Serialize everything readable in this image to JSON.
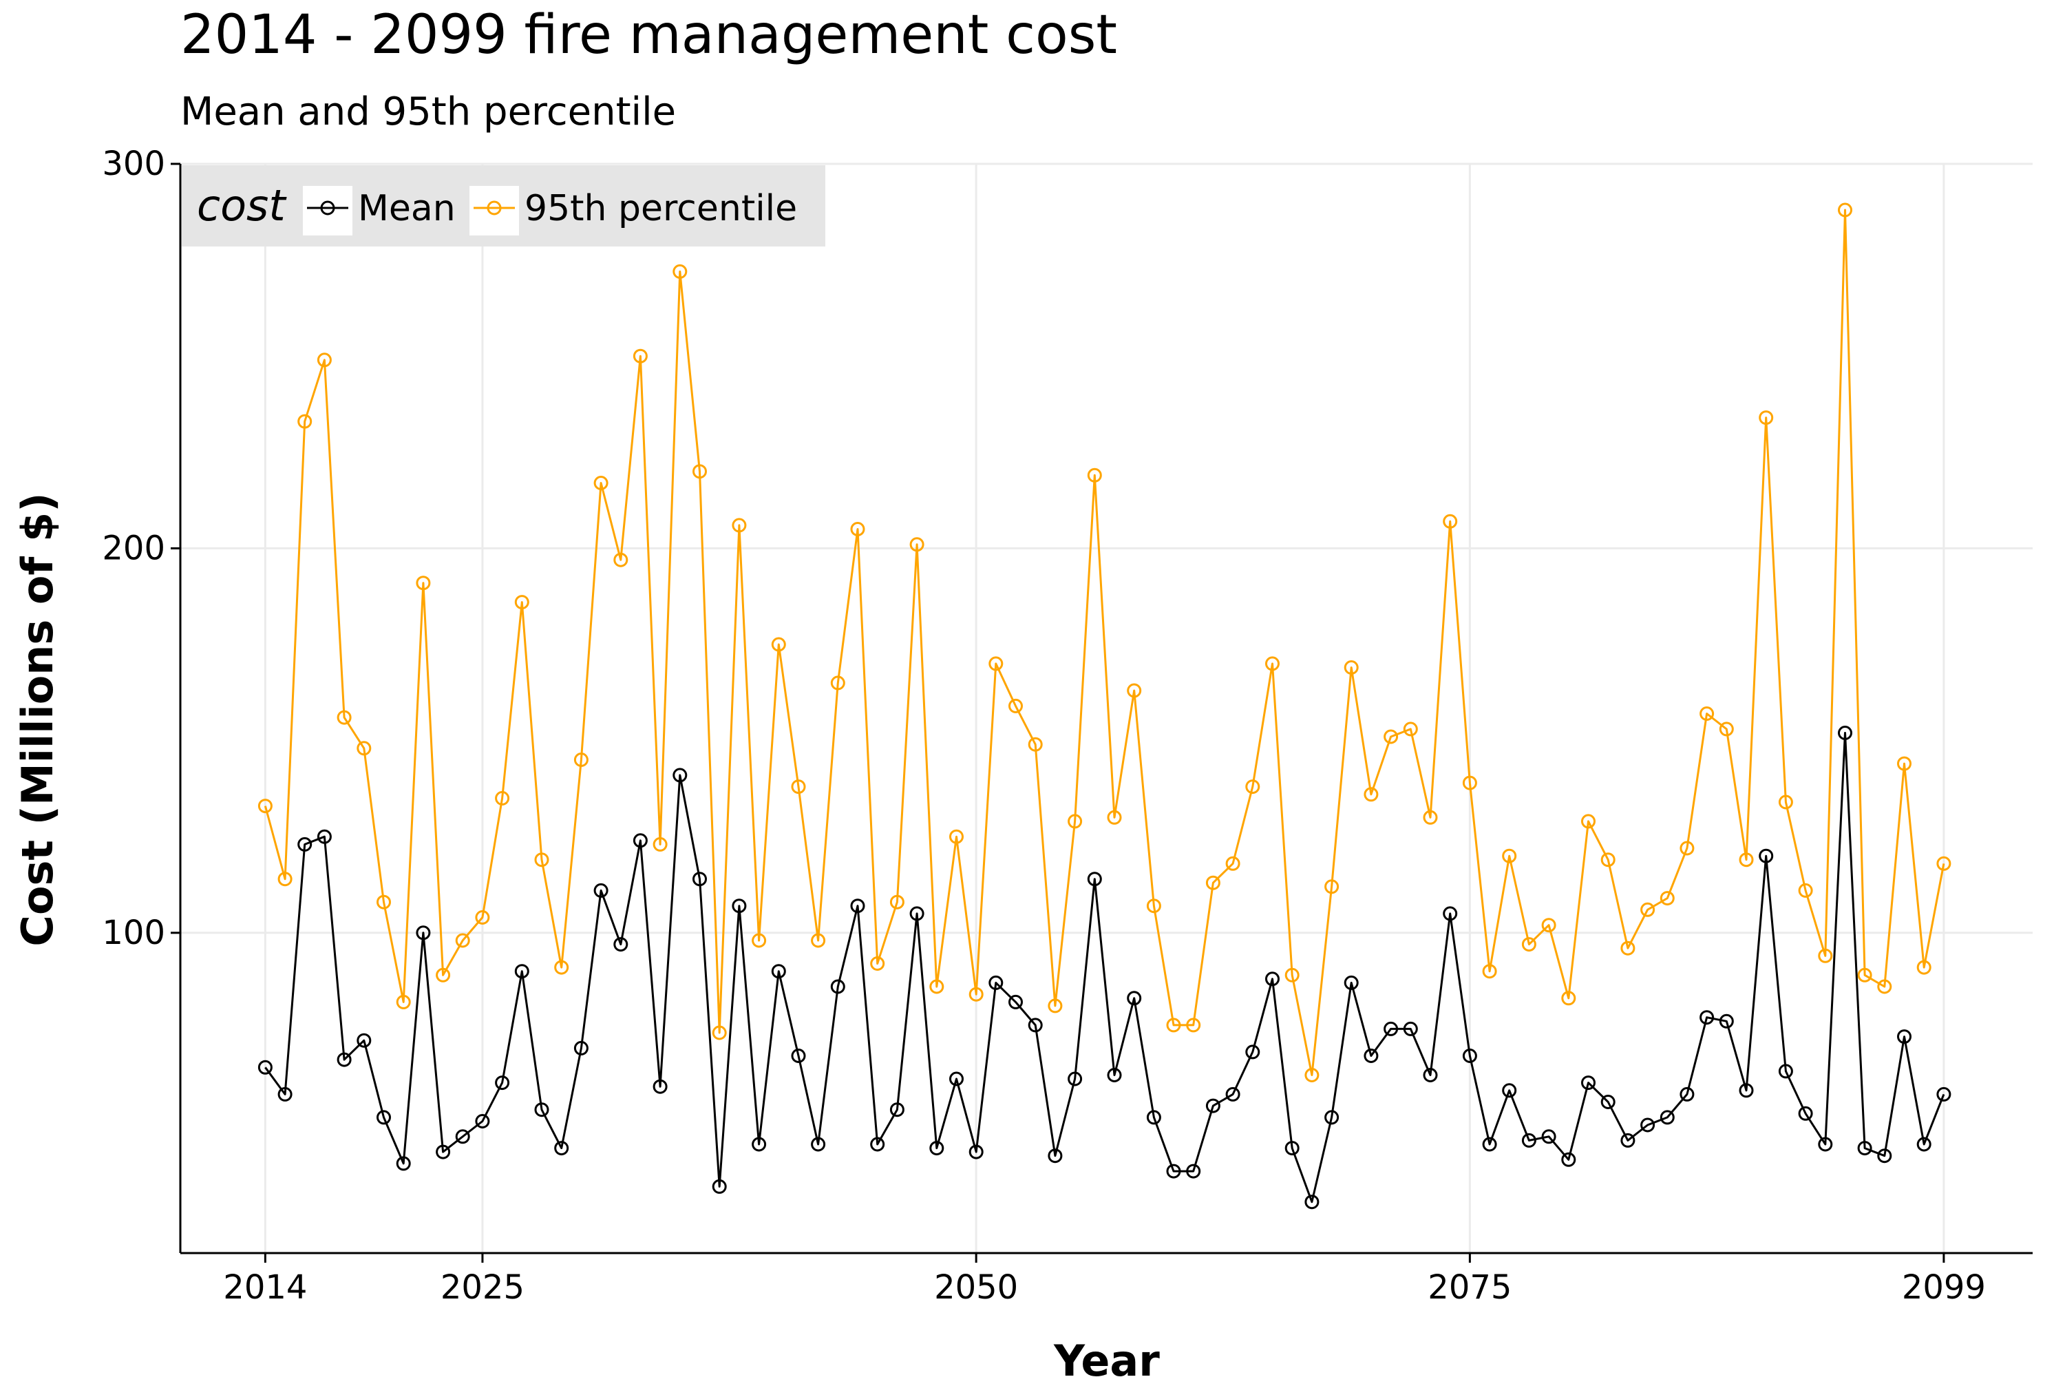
{
  "chart_data": {
    "type": "line",
    "title": "2014 - 2099 fire management cost",
    "subtitle": "Mean and 95th percentile",
    "xlabel": "Year",
    "ylabel": "Cost (Millions of $)",
    "xlim": [
      2009.7,
      2103.5
    ],
    "ylim": [
      16.7,
      300
    ],
    "x_ticks": [
      2014,
      2025,
      2050,
      2075,
      2099
    ],
    "y_ticks": [
      100,
      200,
      300
    ],
    "grid": true,
    "legend": {
      "title": "cost",
      "position": "top-left",
      "entries": [
        "Mean",
        "95th percentile"
      ]
    },
    "colors": {
      "Mean": "#000000",
      "95th percentile": "#ffa500",
      "grid": "#ebebeb",
      "legend_bg": "#e5e5e5"
    },
    "x": [
      2014,
      2015,
      2016,
      2017,
      2018,
      2019,
      2020,
      2021,
      2022,
      2023,
      2024,
      2025,
      2026,
      2027,
      2028,
      2029,
      2030,
      2031,
      2032,
      2033,
      2034,
      2035,
      2036,
      2037,
      2038,
      2039,
      2040,
      2041,
      2042,
      2043,
      2044,
      2045,
      2046,
      2047,
      2048,
      2049,
      2050,
      2051,
      2052,
      2053,
      2054,
      2055,
      2056,
      2057,
      2058,
      2059,
      2060,
      2061,
      2062,
      2063,
      2064,
      2065,
      2066,
      2067,
      2068,
      2069,
      2070,
      2071,
      2072,
      2073,
      2074,
      2075,
      2076,
      2077,
      2078,
      2079,
      2080,
      2081,
      2082,
      2083,
      2084,
      2085,
      2086,
      2087,
      2088,
      2089,
      2090,
      2091,
      2092,
      2093,
      2094,
      2095,
      2096,
      2097,
      2098,
      2099
    ],
    "series": [
      {
        "name": "Mean",
        "values": [
          65,
          58,
          123,
          125,
          67,
          72,
          52,
          40,
          100,
          43,
          47,
          51,
          61,
          90,
          54,
          44,
          70,
          111,
          97,
          124,
          60,
          141,
          114,
          34,
          107,
          45,
          90,
          68,
          45,
          86,
          107,
          45,
          54,
          105,
          44,
          62,
          43,
          87,
          82,
          76,
          42,
          62,
          114,
          63,
          83,
          52,
          38,
          38,
          55,
          58,
          69,
          88,
          44,
          30,
          52,
          87,
          68,
          75,
          75,
          63,
          105,
          68,
          45,
          59,
          46,
          47,
          41,
          61,
          56,
          46,
          50,
          52,
          58,
          78,
          77,
          59,
          120,
          64,
          53,
          45,
          152,
          44,
          42,
          73,
          45,
          58
        ]
      },
      {
        "name": "95th percentile",
        "values": [
          133,
          114,
          233,
          249,
          156,
          148,
          108,
          82,
          191,
          89,
          98,
          104,
          135,
          186,
          119,
          91,
          145,
          217,
          197,
          250,
          123,
          272,
          220,
          74,
          206,
          98,
          175,
          138,
          98,
          165,
          205,
          92,
          108,
          201,
          86,
          125,
          84,
          170,
          159,
          149,
          81,
          129,
          219,
          130,
          163,
          107,
          76,
          76,
          113,
          118,
          138,
          170,
          89,
          63,
          112,
          169,
          136,
          151,
          153,
          130,
          207,
          139,
          90,
          120,
          97,
          102,
          83,
          129,
          119,
          96,
          106,
          109,
          122,
          157,
          153,
          119,
          234,
          134,
          111,
          94,
          288,
          89,
          86,
          144,
          91,
          118
        ]
      }
    ]
  }
}
